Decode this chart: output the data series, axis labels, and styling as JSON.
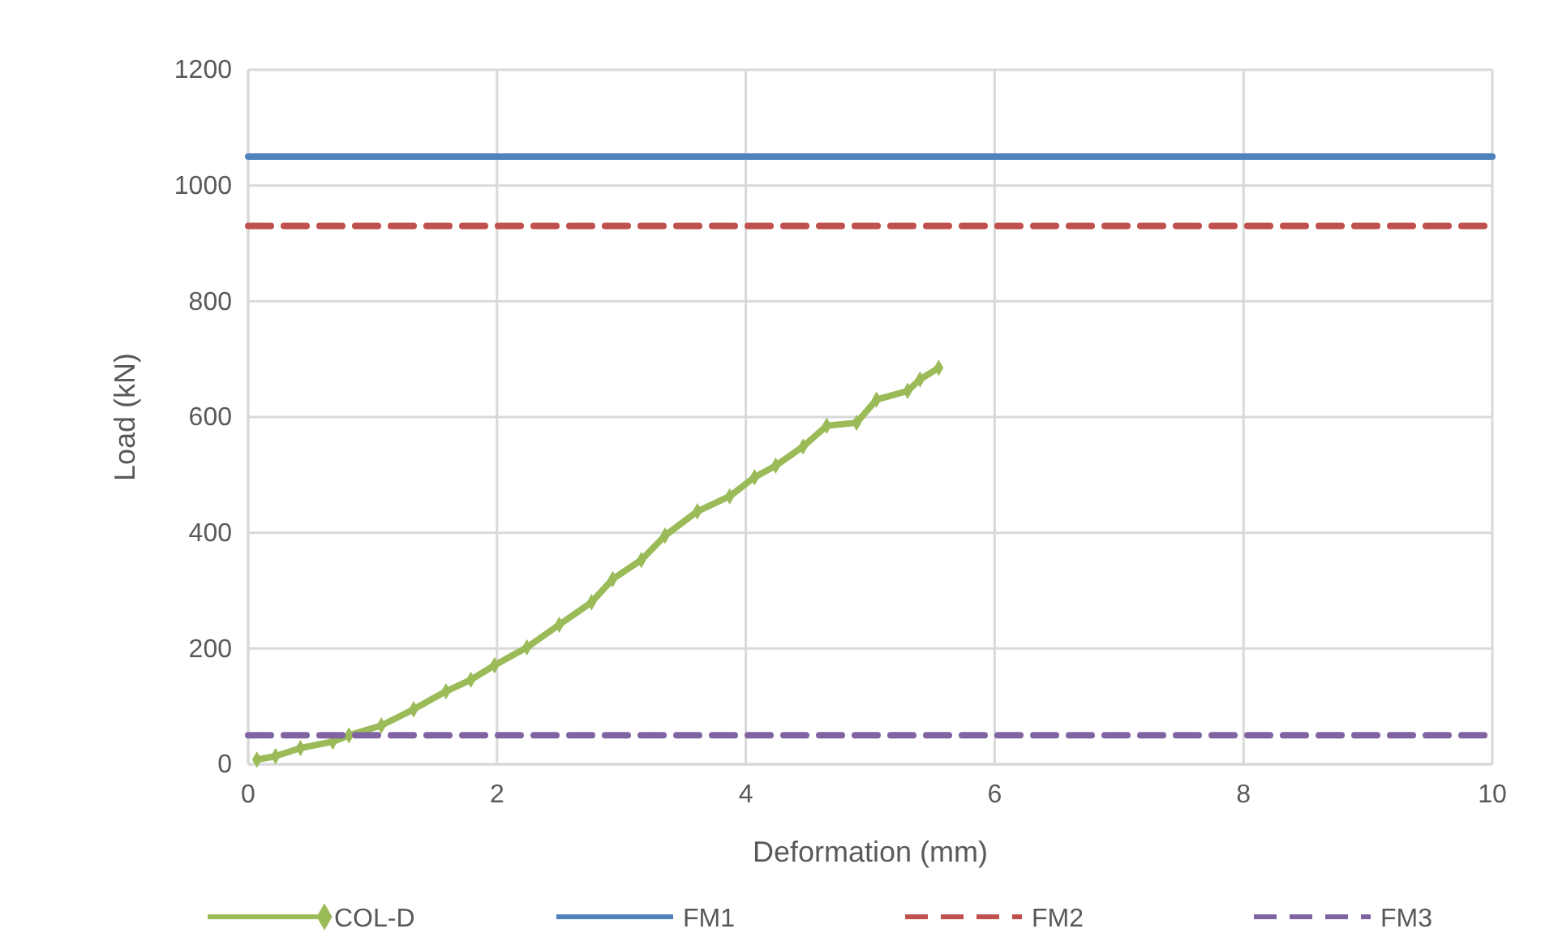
{
  "chart_data": {
    "type": "line",
    "xlabel": "Deformation (mm)",
    "ylabel": "Load (kN)",
    "xlim": [
      0,
      10
    ],
    "xticks": [
      0,
      2,
      4,
      6,
      8,
      10
    ],
    "ylim": [
      0,
      1200
    ],
    "yticks": [
      0,
      200,
      400,
      600,
      800,
      1000,
      1200
    ],
    "grid": true,
    "legend": "bottom",
    "series": [
      {
        "name": "COL-D",
        "color": "#9bbb59",
        "marker": "diamond",
        "line_style": "solid",
        "x": [
          0.07,
          0.22,
          0.42,
          0.68,
          0.81,
          1.07,
          1.33,
          1.59,
          1.79,
          1.98,
          2.24,
          2.5,
          2.76,
          2.93,
          3.16,
          3.35,
          3.61,
          3.87,
          4.07,
          4.24,
          4.46,
          4.65,
          4.89,
          5.05,
          5.3,
          5.4,
          5.55
        ],
        "values": [
          8,
          14,
          28,
          39,
          50,
          67,
          95,
          126,
          146,
          171,
          202,
          241,
          280,
          320,
          353,
          395,
          437,
          463,
          496,
          516,
          549,
          585,
          590,
          630,
          645,
          665,
          685
        ]
      },
      {
        "name": "FM1",
        "color": "#4f81bd",
        "marker": "none",
        "line_style": "solid",
        "x": [
          0,
          10
        ],
        "values": [
          1050,
          1050
        ]
      },
      {
        "name": "FM2",
        "color": "#c0504d",
        "marker": "none",
        "line_style": "dashed",
        "x": [
          0,
          10
        ],
        "values": [
          930,
          930
        ]
      },
      {
        "name": "FM3",
        "color": "#8064a2",
        "marker": "none",
        "line_style": "dashed",
        "x": [
          0,
          10
        ],
        "values": [
          50,
          50
        ]
      }
    ]
  }
}
